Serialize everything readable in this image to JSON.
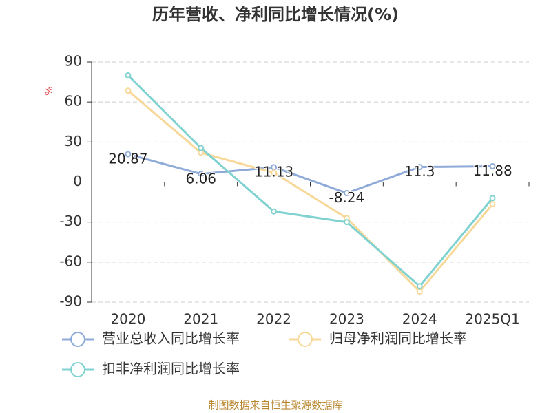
{
  "chart_data": {
    "type": "line",
    "title": "历年营收、净利同比增长情况(%)",
    "y_label": "%",
    "categories": [
      "2020",
      "2021",
      "2022",
      "2023",
      "2024",
      "2025Q1"
    ],
    "series": [
      {
        "name": "营业总收入同比增长率",
        "color": "#8eaad8",
        "values": [
          20.87,
          6.06,
          11.13,
          -8.24,
          11.3,
          11.88
        ],
        "data_labels": true
      },
      {
        "name": "归母净利润同比增长率",
        "color": "#f8d898",
        "values": [
          68.5,
          22,
          7,
          -27,
          -82,
          -16.5
        ]
      },
      {
        "name": "扣非净利润同比增长率",
        "color": "#80d2d0",
        "values": [
          80,
          25.5,
          -22,
          -30,
          -78,
          -12
        ]
      }
    ],
    "ylim": [
      -90,
      90
    ],
    "yticks": [
      -90,
      -60,
      -30,
      0,
      30,
      60,
      90
    ],
    "grid": true,
    "legend": "bottom",
    "source": "制图数据来自恒生聚源数据库"
  }
}
